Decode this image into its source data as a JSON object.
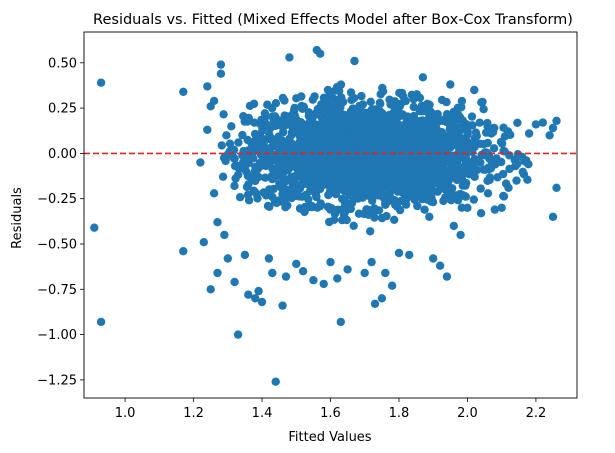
{
  "chart_data": {
    "type": "scatter",
    "title": "Residuals vs. Fitted (Mixed Effects Model after Box-Cox Transform)",
    "xlabel": "Fitted Values",
    "ylabel": "Residuals",
    "xlim": [
      0.88,
      2.32
    ],
    "ylim": [
      -1.35,
      0.67
    ],
    "xticks": [
      1.0,
      1.2,
      1.4,
      1.6,
      1.8,
      2.0,
      2.2
    ],
    "xtick_labels": [
      "1.0",
      "1.2",
      "1.4",
      "1.6",
      "1.8",
      "2.0",
      "2.2"
    ],
    "yticks": [
      -1.25,
      -1.0,
      -0.75,
      -0.5,
      -0.25,
      0.0,
      0.25,
      0.5
    ],
    "ytick_labels": [
      "−1.25",
      "−1.00",
      "−0.75",
      "−0.50",
      "−0.25",
      "0.00",
      "0.25",
      "0.50"
    ],
    "grid": false,
    "marker_color": "#1f77b4",
    "reference_line": {
      "y": 0.0,
      "color": "#d62728",
      "style": "dashed"
    },
    "dense_cloud": {
      "description_note": "",
      "x_range": [
        1.27,
        2.2
      ],
      "y_range": [
        -0.5,
        0.45
      ]
    },
    "series": [
      {
        "values_xy": [
          [
            0.93,
            0.39
          ],
          [
            0.91,
            -0.41
          ],
          [
            0.93,
            -0.93
          ],
          [
            1.17,
            0.34
          ],
          [
            1.17,
            -0.54
          ],
          [
            1.22,
            -0.05
          ],
          [
            1.23,
            -0.49
          ],
          [
            1.24,
            0.37
          ],
          [
            1.25,
            0.26
          ],
          [
            1.26,
            0.29
          ],
          [
            1.24,
            0.13
          ],
          [
            1.25,
            -0.75
          ],
          [
            1.27,
            -0.66
          ],
          [
            1.28,
            0.49
          ],
          [
            1.28,
            0.44
          ],
          [
            1.26,
            -0.22
          ],
          [
            1.27,
            -0.38
          ],
          [
            1.29,
            -0.45
          ],
          [
            1.3,
            -0.58
          ],
          [
            1.32,
            -0.71
          ],
          [
            1.33,
            -1.0
          ],
          [
            1.35,
            -0.56
          ],
          [
            1.36,
            -0.78
          ],
          [
            1.38,
            -0.8
          ],
          [
            1.39,
            -0.76
          ],
          [
            1.4,
            -0.82
          ],
          [
            1.42,
            -0.58
          ],
          [
            1.43,
            -0.66
          ],
          [
            1.44,
            -1.26
          ],
          [
            1.46,
            -0.84
          ],
          [
            1.47,
            -0.68
          ],
          [
            1.48,
            0.53
          ],
          [
            1.5,
            -0.61
          ],
          [
            1.52,
            -0.65
          ],
          [
            1.55,
            -0.7
          ],
          [
            1.56,
            0.57
          ],
          [
            1.57,
            0.55
          ],
          [
            1.58,
            -0.72
          ],
          [
            1.6,
            -0.6
          ],
          [
            1.62,
            -0.69
          ],
          [
            1.63,
            -0.93
          ],
          [
            1.65,
            -0.64
          ],
          [
            1.67,
            0.51
          ],
          [
            1.7,
            -0.66
          ],
          [
            1.72,
            -0.6
          ],
          [
            1.73,
            -0.83
          ],
          [
            1.75,
            -0.8
          ],
          [
            1.76,
            -0.66
          ],
          [
            1.78,
            -0.73
          ],
          [
            1.8,
            -0.55
          ],
          [
            1.83,
            -0.56
          ],
          [
            1.87,
            0.42
          ],
          [
            1.9,
            -0.58
          ],
          [
            1.92,
            -0.62
          ],
          [
            1.94,
            -0.68
          ],
          [
            1.95,
            0.38
          ],
          [
            1.96,
            -0.4
          ],
          [
            1.98,
            -0.45
          ],
          [
            2.0,
            -0.3
          ],
          [
            2.02,
            0.35
          ],
          [
            2.04,
            -0.33
          ],
          [
            2.06,
            -0.22
          ],
          [
            2.08,
            -0.31
          ],
          [
            2.1,
            -0.3
          ],
          [
            2.12,
            -0.19
          ],
          [
            2.14,
            -0.07
          ],
          [
            2.16,
            -0.02
          ],
          [
            2.18,
            0.11
          ],
          [
            2.2,
            0.16
          ],
          [
            2.22,
            0.17
          ],
          [
            2.24,
            0.1
          ],
          [
            2.25,
            -0.35
          ],
          [
            2.26,
            -0.19
          ],
          [
            2.26,
            0.18
          ],
          [
            2.25,
            0.14
          ]
        ]
      }
    ]
  }
}
